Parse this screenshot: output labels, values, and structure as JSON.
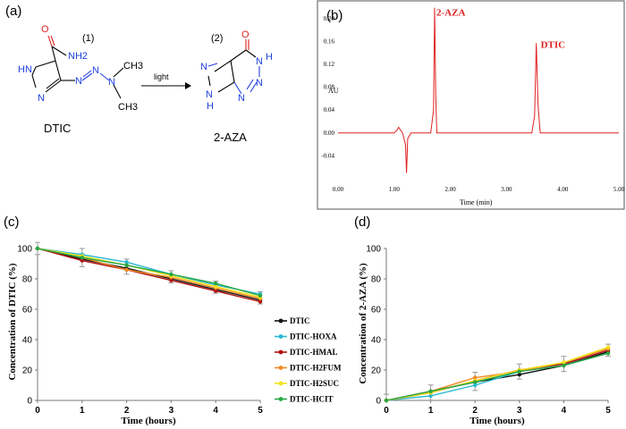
{
  "scheme": {
    "panel_label": "(a)",
    "compound1_number": "(1)",
    "compound2_number": "(2)",
    "compound1_name": "DTIC",
    "compound2_name": "2-AZA",
    "arrow_label": "light",
    "atoms": {
      "nh": "HN",
      "n": "N",
      "o": "O",
      "nh2": "NH2",
      "ch3": "CH3",
      "h": "H",
      "n_plain": "N"
    }
  },
  "chart_data": [
    {
      "type": "line",
      "panel": "(b)",
      "title": "",
      "xlabel": "Time  (min)",
      "ylabel": "AU",
      "xlim": [
        0,
        5
      ],
      "ylim": [
        -0.08,
        0.22
      ],
      "xticks": [
        "0.00",
        "1.00",
        "2.00",
        "3.00",
        "4.00",
        "5.00"
      ],
      "yticks": [
        "-0.04",
        "0.00",
        "0.04",
        "0.08",
        "0.12",
        "0.16",
        "0.20"
      ],
      "annotations": [
        "2-AZA",
        "DTIC"
      ],
      "color": "#e02020",
      "series": [
        {
          "name": "chromatogram",
          "x": [
            0.0,
            1.0,
            1.05,
            1.08,
            1.12,
            1.15,
            1.2,
            1.22,
            1.24,
            1.3,
            1.65,
            1.7,
            1.72,
            1.74,
            1.76,
            1.8,
            1.9,
            3.45,
            3.5,
            3.53,
            3.56,
            3.6,
            3.7,
            5.0
          ],
          "y": [
            0.0,
            0.0,
            0.005,
            0.01,
            0.004,
            0.0,
            -0.02,
            -0.07,
            -0.01,
            0.0,
            0.0,
            0.04,
            0.219,
            0.06,
            0.0,
            0.0,
            0.0,
            0.0,
            0.03,
            0.157,
            0.05,
            0.0,
            0.0,
            0.0
          ]
        }
      ]
    },
    {
      "type": "line",
      "panel": "(c)",
      "xlabel": "Time (hours)",
      "ylabel": "Concentration of DTIC (%)",
      "xlim": [
        0,
        5
      ],
      "ylim": [
        0,
        100
      ],
      "xticks": [
        "0",
        "1",
        "2",
        "3",
        "4",
        "5"
      ],
      "yticks": [
        "0",
        "20",
        "40",
        "60",
        "80",
        "100"
      ],
      "legend_position": "right",
      "categories": [
        0,
        1,
        2,
        3,
        4,
        5
      ],
      "series": [
        {
          "name": "DTIC",
          "color": "#111111",
          "values": [
            100,
            93,
            87,
            80,
            73,
            66
          ]
        },
        {
          "name": "DTIC-HOXA",
          "color": "#2ab8d4",
          "values": [
            100,
            96,
            91,
            83,
            76,
            70
          ]
        },
        {
          "name": "DTIC-HMAL",
          "color": "#b01010",
          "values": [
            100,
            92,
            86,
            79,
            72,
            65
          ]
        },
        {
          "name": "DTIC-H2FUM",
          "color": "#f08a24",
          "values": [
            100,
            94,
            86,
            81,
            74,
            67
          ]
        },
        {
          "name": "DTIC-H2SUC",
          "color": "#f3e21a",
          "values": [
            100,
            95,
            89,
            82,
            75,
            68
          ]
        },
        {
          "name": "DTIC-HCIT",
          "color": "#27a845",
          "values": [
            100,
            94,
            89,
            83,
            77,
            69
          ]
        }
      ],
      "error": [
        4,
        6,
        5,
        4,
        4,
        4
      ]
    },
    {
      "type": "line",
      "panel": "(d)",
      "xlabel": "Time (hours)",
      "ylabel": "Concentration of 2-AZA (%)",
      "xlim": [
        0,
        5
      ],
      "ylim": [
        0,
        100
      ],
      "xticks": [
        "0",
        "1",
        "2",
        "3",
        "4",
        "5"
      ],
      "yticks": [
        "0",
        "20",
        "40",
        "60",
        "80",
        "100"
      ],
      "categories": [
        0,
        1,
        2,
        3,
        4,
        5
      ],
      "series": [
        {
          "name": "DTIC",
          "color": "#111111",
          "values": [
            0,
            6,
            12,
            17,
            23,
            32
          ]
        },
        {
          "name": "DTIC-HOXA",
          "color": "#2ab8d4",
          "values": [
            0,
            3,
            10,
            19,
            24,
            33
          ]
        },
        {
          "name": "DTIC-HMAL",
          "color": "#b01010",
          "values": [
            0,
            5,
            13,
            20,
            24,
            33
          ]
        },
        {
          "name": "DTIC-H2FUM",
          "color": "#f08a24",
          "values": [
            0,
            6,
            15,
            19,
            25,
            34
          ]
        },
        {
          "name": "DTIC-H2SUC",
          "color": "#f3e21a",
          "values": [
            0,
            5,
            13,
            20,
            25,
            35
          ]
        },
        {
          "name": "DTIC-HCIT",
          "color": "#27a845",
          "values": [
            0,
            6,
            12,
            19,
            23,
            31
          ]
        }
      ],
      "error": [
        4,
        5,
        6,
        5,
        5,
        4
      ]
    }
  ]
}
